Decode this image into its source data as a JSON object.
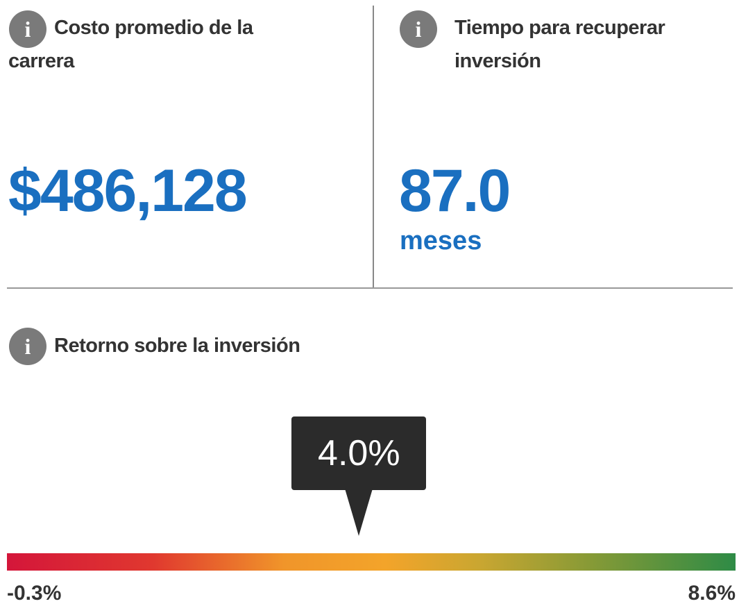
{
  "cost_panel": {
    "title": "Costo promedio de la carrera",
    "value": "$486,128"
  },
  "payback_panel": {
    "title": "Tiempo para recuperar inversión",
    "value": "87.0",
    "unit": "meses"
  },
  "roi_panel": {
    "title": "Retorno sobre la inversión",
    "gauge": {
      "value": 4.0,
      "value_label": "4.0%",
      "min": -0.3,
      "min_label": "-0.3%",
      "max": 8.6,
      "max_label": "8.6%"
    }
  }
}
